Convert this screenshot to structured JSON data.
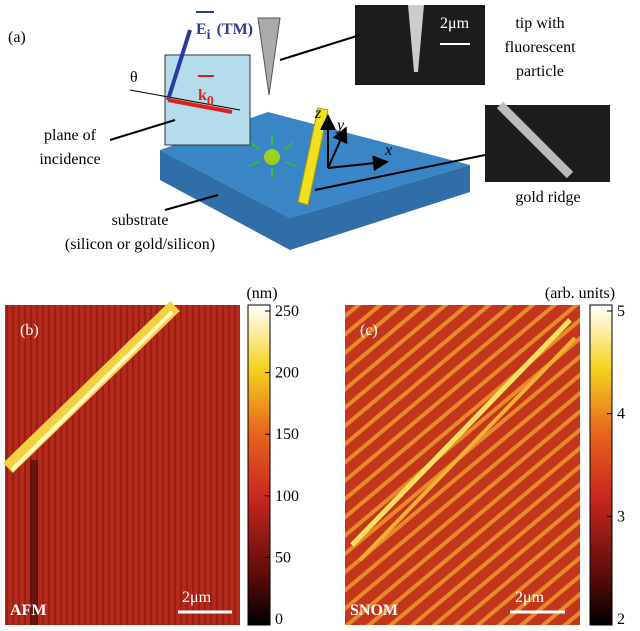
{
  "panel_a": {
    "label": "(a)",
    "field": "E",
    "field_sub": "i",
    "polarization": "(TM)",
    "angle": "θ",
    "wave": "k",
    "wave_sub": "0",
    "tip_text": [
      "tip with",
      "fluorescent",
      "particle"
    ],
    "tip_scale": "2μm",
    "plane_text": [
      "plane of",
      "incidence"
    ],
    "axes": [
      "z",
      "y",
      "x"
    ],
    "ridge_text": "gold ridge",
    "substrate_text": [
      "substrate",
      "(silicon or gold/silicon)"
    ]
  },
  "panel_b": {
    "label": "(b)",
    "name": "AFM",
    "scale": "2μm",
    "colorbar": {
      "unit": "(nm)",
      "lim": [
        0,
        250
      ],
      "ticks": [
        0,
        50,
        100,
        150,
        200,
        250
      ]
    }
  },
  "panel_c": {
    "label": "(c)",
    "name": "SNOM",
    "scale": "2μm",
    "colorbar": {
      "unit": "(arb. units)",
      "lim": [
        2,
        5
      ],
      "ticks": [
        2,
        3,
        4,
        5
      ]
    }
  }
}
